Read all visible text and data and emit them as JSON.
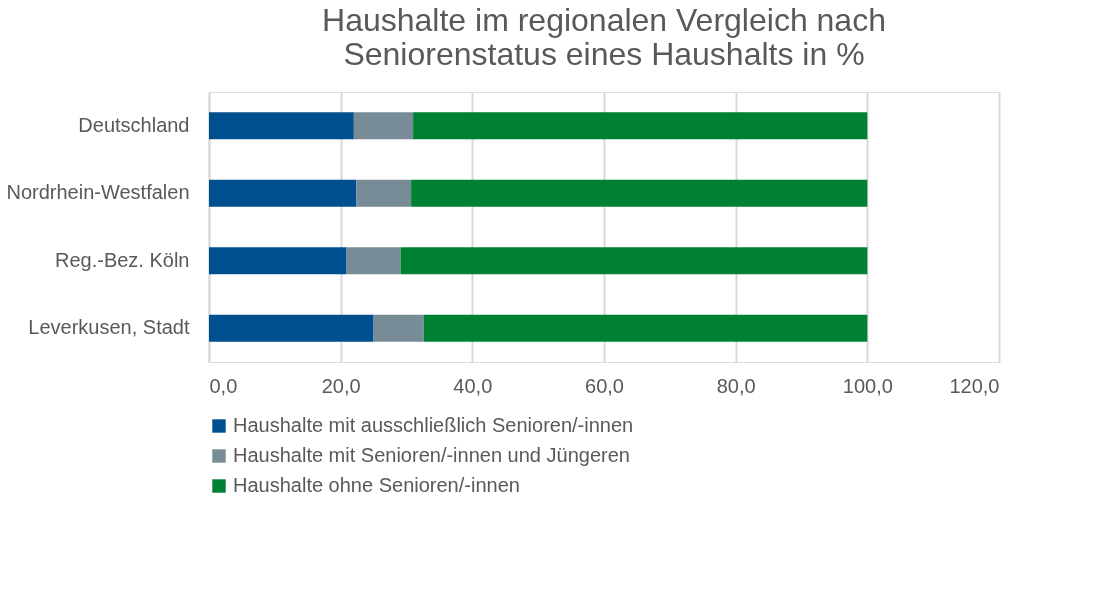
{
  "chart_data": {
    "type": "bar",
    "orientation": "horizontal",
    "stacked": true,
    "title": [
      "Haushalte im regionalen Vergleich nach",
      "Seniorenstatus eines Haushalts in %"
    ],
    "categories": [
      "Deutschland",
      "Nordrhein-Westfalen",
      "Reg.-Bez. Köln",
      "Leverkusen, Stadt"
    ],
    "series": [
      {
        "name": "Haushalte mit ausschließlich Senioren/-innen",
        "color": "#00508f",
        "values": [
          22.0,
          22.4,
          20.9,
          25.0
        ]
      },
      {
        "name": "Haushalte mit Senioren/-innen und Jüngeren",
        "color": "#778c97",
        "values": [
          9.0,
          8.3,
          8.2,
          7.6
        ]
      },
      {
        "name": "Haushalte ohne Senioren/-innen",
        "color": "#008033",
        "values": [
          69.0,
          69.3,
          70.9,
          67.4
        ]
      }
    ],
    "xlim": [
      0,
      120
    ],
    "xticks": [
      {
        "value": 0,
        "label": "0,0"
      },
      {
        "value": 20,
        "label": "20,0"
      },
      {
        "value": 40,
        "label": "40,0"
      },
      {
        "value": 60,
        "label": "60,0"
      },
      {
        "value": 80,
        "label": "80,0"
      },
      {
        "value": 100,
        "label": "100,0"
      },
      {
        "value": 120,
        "label": "120,0"
      }
    ],
    "grid": "x",
    "legend": "bottom"
  }
}
